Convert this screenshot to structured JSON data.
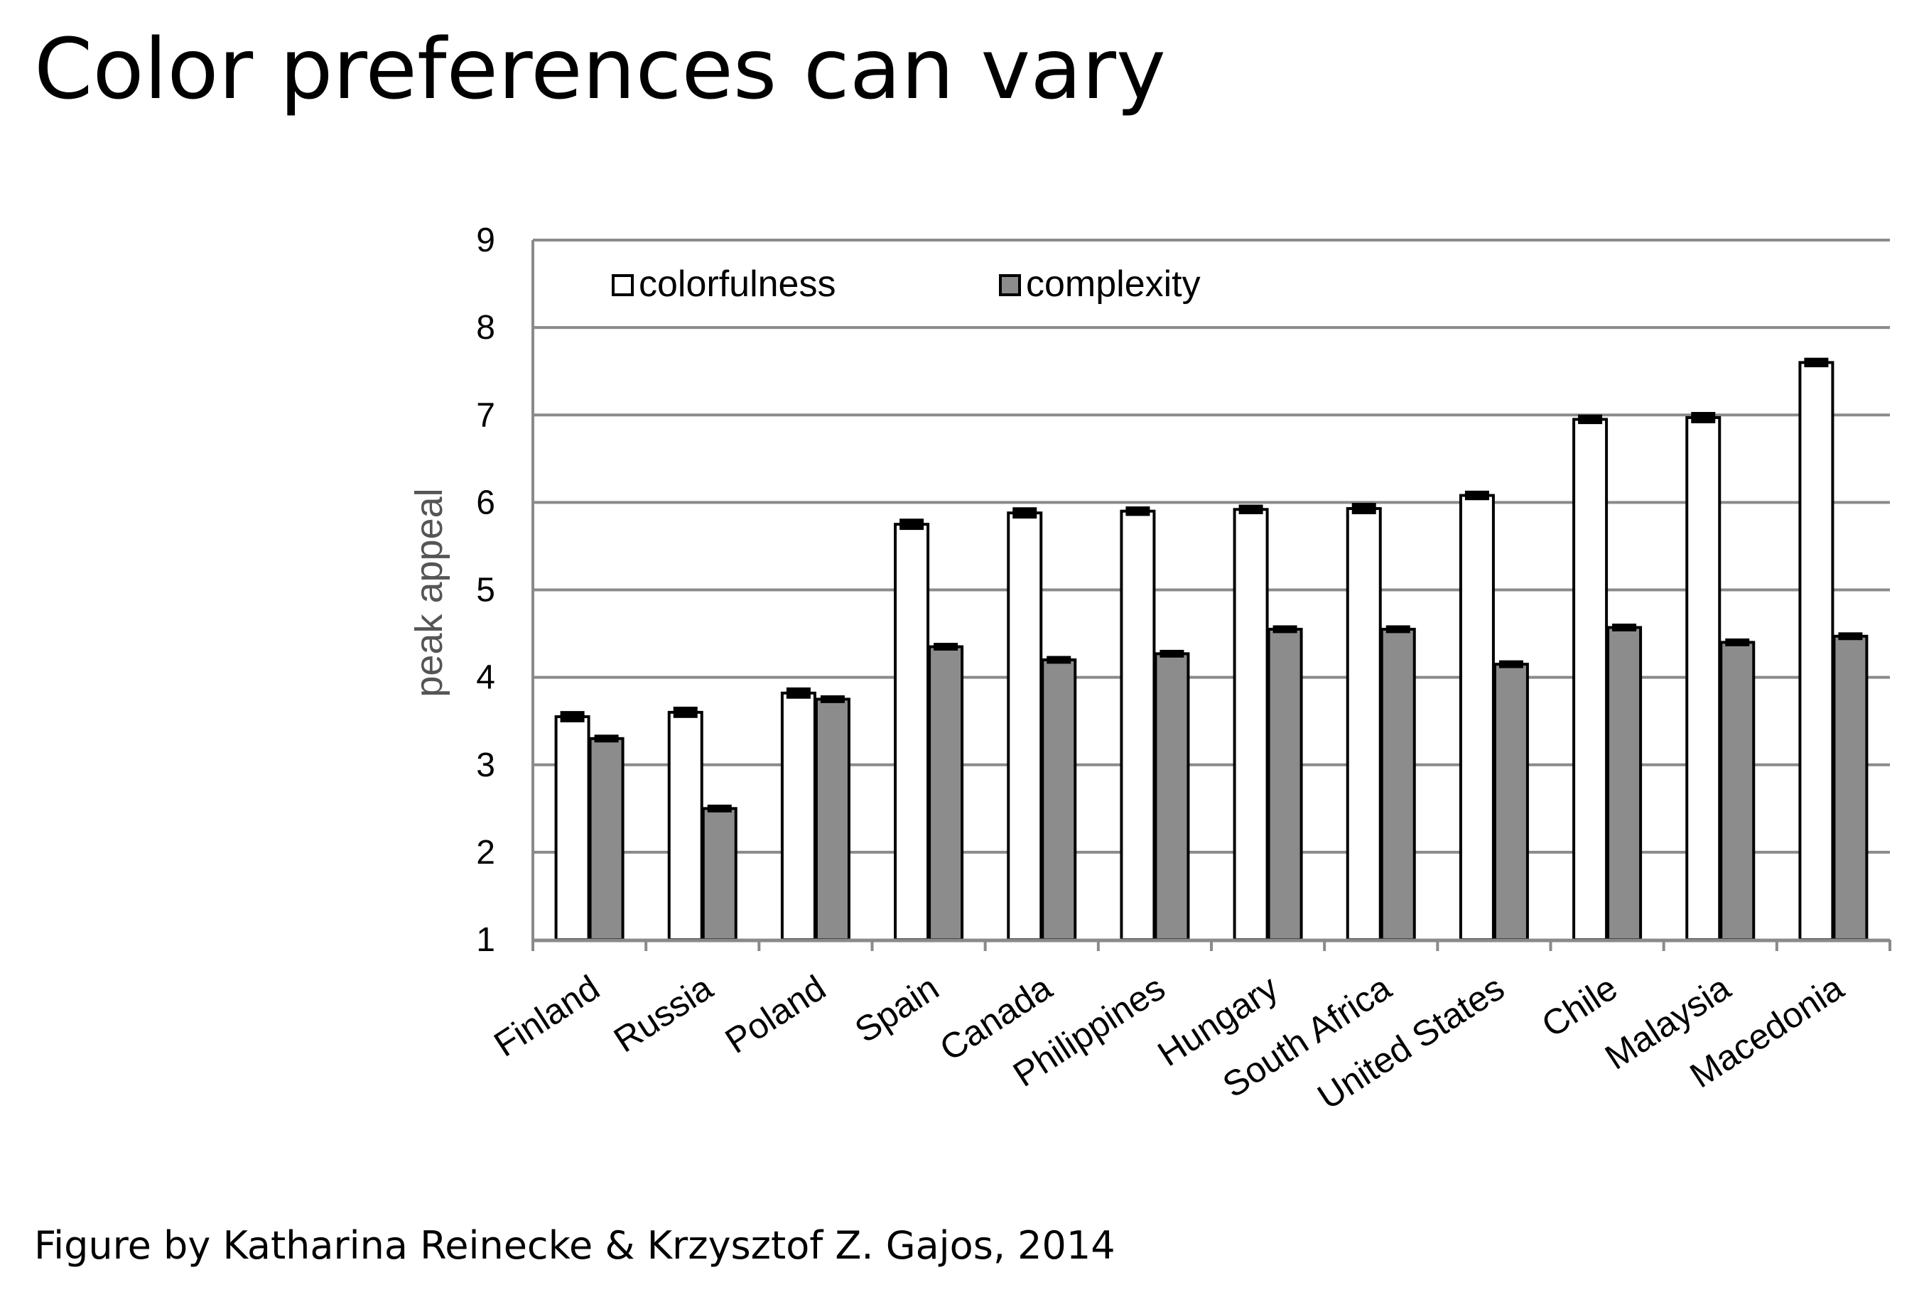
{
  "slide": {
    "title": "Color preferences can vary",
    "caption": "Figure by Katharina Reinecke & Krzysztof Z. Gajos, 2014"
  },
  "chart_data": {
    "type": "bar",
    "title": "",
    "xlabel": "",
    "ylabel": "peak appeal",
    "ylim": [
      1,
      9
    ],
    "yticks": [
      "1",
      "2",
      "3",
      "4",
      "5",
      "6",
      "7",
      "8",
      "9"
    ],
    "grid": true,
    "legend_position": "top-left",
    "categories": [
      "Finland",
      "Russia",
      "Poland",
      "Spain",
      "Canada",
      "Philippines",
      "Hungary",
      "South Africa",
      "United States",
      "Chile",
      "Malaysia",
      "Macedonia"
    ],
    "series": [
      {
        "name": "colorfulness",
        "color": "#ffffff",
        "values": [
          3.55,
          3.6,
          3.82,
          5.75,
          5.88,
          5.9,
          5.92,
          5.93,
          6.08,
          6.95,
          6.97,
          7.6
        ],
        "error": [
          0.04,
          0.04,
          0.04,
          0.04,
          0.04,
          0.03,
          0.03,
          0.04,
          0.03,
          0.03,
          0.04,
          0.03
        ]
      },
      {
        "name": "complexity",
        "color": "#8c8c8c",
        "values": [
          3.3,
          2.5,
          3.75,
          4.35,
          4.2,
          4.27,
          4.55,
          4.55,
          4.15,
          4.57,
          4.4,
          4.47
        ],
        "error": [
          0.02,
          0.02,
          0.02,
          0.02,
          0.02,
          0.02,
          0.02,
          0.02,
          0.02,
          0.02,
          0.02,
          0.02
        ]
      }
    ]
  }
}
